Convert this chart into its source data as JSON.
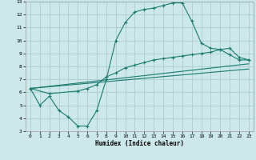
{
  "xlabel": "Humidex (Indice chaleur)",
  "bg_color": "#cce8ea",
  "grid_color": "#aacdd0",
  "line_color": "#1a7a6e",
  "xlim": [
    -0.5,
    23.5
  ],
  "ylim": [
    3,
    13
  ],
  "xticks": [
    0,
    1,
    2,
    3,
    4,
    5,
    6,
    7,
    8,
    9,
    10,
    11,
    12,
    13,
    14,
    15,
    16,
    17,
    18,
    19,
    20,
    21,
    22,
    23
  ],
  "yticks": [
    3,
    4,
    5,
    6,
    7,
    8,
    9,
    10,
    11,
    12,
    13
  ],
  "line1_x": [
    0,
    1,
    2,
    3,
    4,
    5,
    6,
    7,
    8,
    9,
    10,
    11,
    12,
    13,
    14,
    15,
    16,
    17,
    18,
    19,
    20,
    21,
    22,
    23
  ],
  "line1_y": [
    6.3,
    5.0,
    5.7,
    4.6,
    4.1,
    3.4,
    3.4,
    4.6,
    7.0,
    10.0,
    11.4,
    12.2,
    12.4,
    12.5,
    12.7,
    12.9,
    12.9,
    11.5,
    9.8,
    9.4,
    9.3,
    8.9,
    8.5,
    8.5
  ],
  "line2_x": [
    0,
    2,
    5,
    6,
    7,
    8,
    9,
    10,
    11,
    12,
    13,
    14,
    15,
    16,
    17,
    18,
    19,
    20,
    21,
    22,
    23
  ],
  "line2_y": [
    6.3,
    5.9,
    6.1,
    6.3,
    6.6,
    7.2,
    7.5,
    7.9,
    8.1,
    8.3,
    8.5,
    8.6,
    8.7,
    8.8,
    8.9,
    9.0,
    9.1,
    9.3,
    9.4,
    8.7,
    8.5
  ],
  "line3_x": [
    0,
    23
  ],
  "line3_y": [
    6.3,
    8.2
  ],
  "line4_x": [
    0,
    23
  ],
  "line4_y": [
    6.3,
    7.8
  ]
}
